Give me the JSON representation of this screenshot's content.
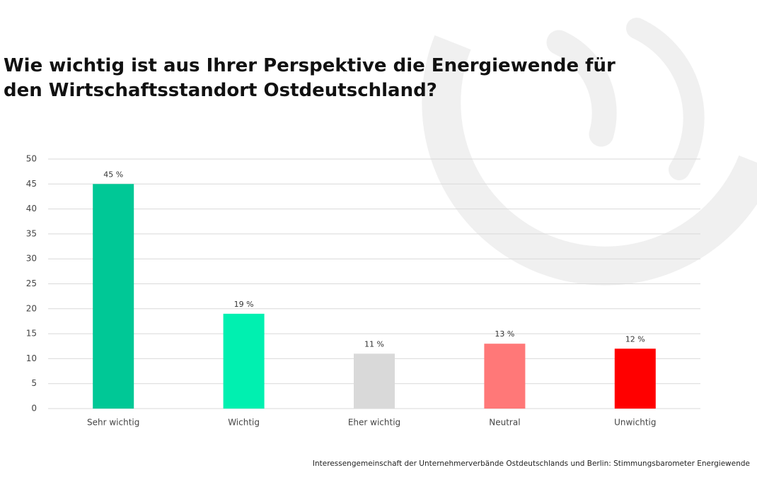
{
  "chart_data": {
    "type": "bar",
    "title": "Wie wichtig ist aus Ihrer Perspektive die Energiewende für den Wirtschaftsstandort Ostdeutschland?",
    "categories": [
      "Sehr wichtig",
      "Wichtig",
      "Eher wichtig",
      "Neutral",
      "Unwichtig"
    ],
    "values": [
      45,
      19,
      11,
      13,
      12
    ],
    "value_labels": [
      "45 %",
      "19 %",
      "11 %",
      "13 %",
      "12 %"
    ],
    "colors": [
      "#00c896",
      "#00f0b0",
      "#d9d9d9",
      "#ff7878",
      "#ff0000"
    ],
    "ylim": [
      0,
      50
    ],
    "yticks": [
      0,
      5,
      10,
      15,
      20,
      25,
      30,
      35,
      40,
      45,
      50
    ],
    "grid": true,
    "source": "Interessengemeinschaft der Unternehmerverbände Ostdeutschlands und Berlin: Stimmungsbarometer Energiewende"
  }
}
